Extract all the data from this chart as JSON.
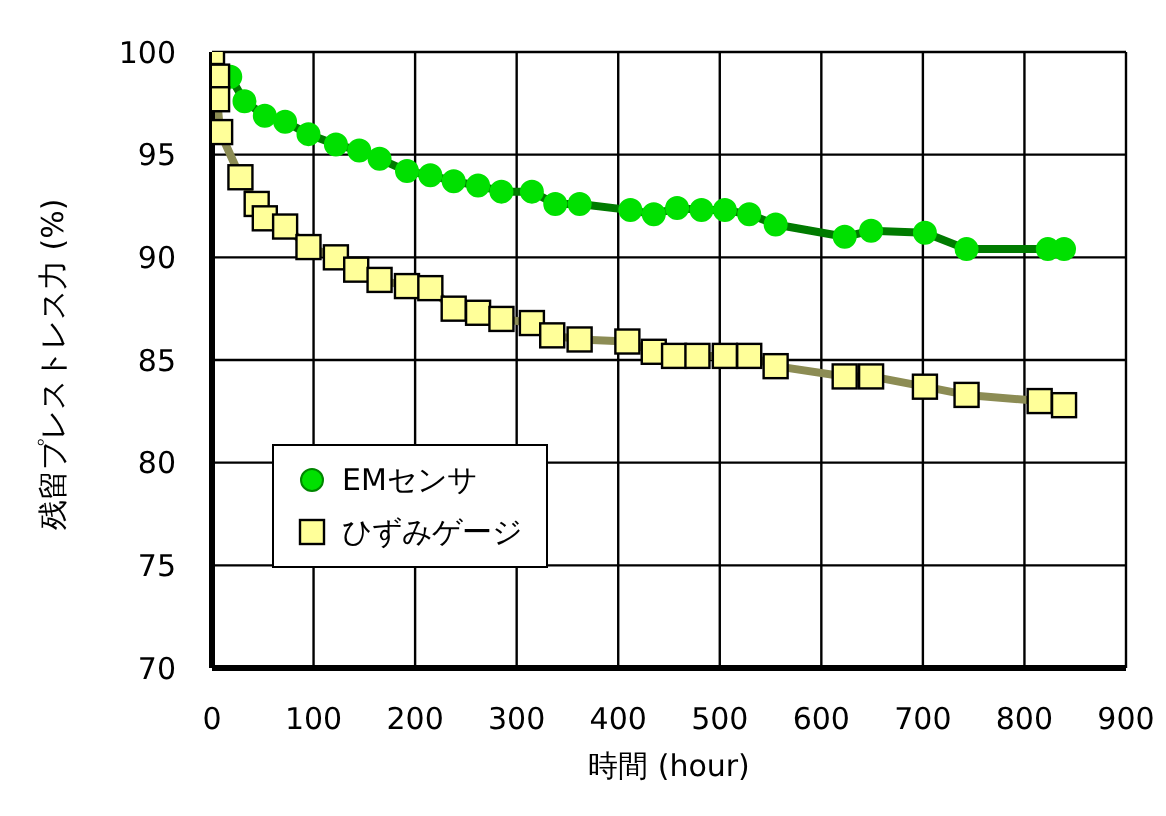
{
  "chart_data": {
    "type": "line",
    "xlabel": "時間 (hour)",
    "ylabel": "残留プレストレス力 (%)",
    "xlim": [
      0,
      900
    ],
    "xticks": [
      0,
      100,
      200,
      300,
      400,
      500,
      600,
      700,
      800,
      900
    ],
    "ylim": [
      70,
      100
    ],
    "yticks": [
      70,
      75,
      80,
      85,
      90,
      95,
      100
    ],
    "grid": true,
    "legend": "bottom left",
    "series": [
      {
        "name": "EMセンサ",
        "color": "#00e000",
        "marker": "circle",
        "x": [
          18,
          32,
          52,
          72,
          95,
          122,
          145,
          165,
          192,
          215,
          238,
          262,
          285,
          315,
          338,
          362,
          412,
          435,
          458,
          482,
          505,
          529,
          555,
          623,
          649,
          702,
          743,
          823,
          839
        ],
        "values": [
          98.8,
          97.6,
          96.9,
          96.6,
          96.0,
          95.5,
          95.2,
          94.8,
          94.2,
          94.0,
          93.7,
          93.5,
          93.2,
          93.2,
          92.6,
          92.6,
          92.3,
          92.1,
          92.4,
          92.3,
          92.3,
          92.1,
          91.6,
          91.0,
          91.3,
          91.2,
          90.4,
          90.4,
          90.4
        ]
      },
      {
        "name": "ひずみゲージ",
        "color": "#ffff99",
        "marker": "square",
        "x": [
          0,
          5,
          5,
          8,
          28,
          44,
          52,
          72,
          95,
          122,
          142,
          165,
          192,
          215,
          238,
          262,
          285,
          315,
          335,
          362,
          409,
          435,
          455,
          478,
          505,
          529,
          555,
          623,
          649,
          702,
          743,
          815,
          839
        ],
        "values": [
          100,
          98.8,
          97.7,
          96.1,
          93.9,
          92.6,
          91.9,
          91.5,
          90.5,
          90.0,
          89.4,
          88.9,
          88.6,
          88.5,
          87.5,
          87.3,
          87.0,
          86.8,
          86.2,
          86.0,
          85.9,
          85.4,
          85.2,
          85.2,
          85.2,
          85.2,
          84.7,
          84.2,
          84.2,
          83.7,
          83.3,
          83.0,
          82.8
        ]
      }
    ]
  }
}
